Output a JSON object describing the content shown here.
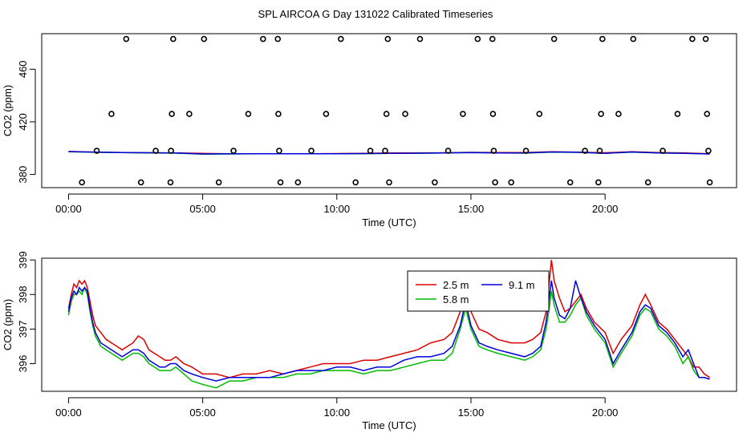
{
  "title": "SPL AIRCOA G  Day 131022  Calibrated Timeseries",
  "colors": {
    "red": "#dd0000",
    "green": "#00bb00",
    "blue": "#0000dd",
    "black": "#000000"
  },
  "chart_data": [
    {
      "type": "scatter",
      "xlabel": "Time (UTC)",
      "ylabel": "CO2 (ppm)",
      "xlim": [
        -1.0,
        24.9
      ],
      "ylim": [
        370.0,
        487.0
      ],
      "x_ticks": [
        0,
        5,
        10,
        15,
        20
      ],
      "x_tick_labels": [
        "00:00",
        "05:00",
        "10:00",
        "15:00",
        "20:00"
      ],
      "y_ticks": [
        380,
        420,
        460
      ],
      "y_tick_labels": [
        "380",
        "420",
        "460"
      ],
      "grid": false,
      "legend": "none",
      "points": [
        {
          "x": 0.5,
          "y": 374
        },
        {
          "x": 1.05,
          "y": 398
        },
        {
          "x": 1.6,
          "y": 426
        },
        {
          "x": 2.15,
          "y": 483
        },
        {
          "x": 2.7,
          "y": 374
        },
        {
          "x": 3.25,
          "y": 398
        },
        {
          "x": 3.8,
          "y": 374
        },
        {
          "x": 3.82,
          "y": 398
        },
        {
          "x": 3.85,
          "y": 426
        },
        {
          "x": 3.9,
          "y": 483
        },
        {
          "x": 4.5,
          "y": 426
        },
        {
          "x": 5.05,
          "y": 483
        },
        {
          "x": 5.6,
          "y": 374
        },
        {
          "x": 6.15,
          "y": 398
        },
        {
          "x": 6.7,
          "y": 426
        },
        {
          "x": 7.25,
          "y": 483
        },
        {
          "x": 7.8,
          "y": 483
        },
        {
          "x": 7.82,
          "y": 426
        },
        {
          "x": 7.85,
          "y": 398
        },
        {
          "x": 7.9,
          "y": 374
        },
        {
          "x": 8.55,
          "y": 374
        },
        {
          "x": 9.05,
          "y": 398
        },
        {
          "x": 9.6,
          "y": 426
        },
        {
          "x": 10.15,
          "y": 483
        },
        {
          "x": 10.7,
          "y": 374
        },
        {
          "x": 11.25,
          "y": 398
        },
        {
          "x": 11.8,
          "y": 398
        },
        {
          "x": 11.85,
          "y": 426
        },
        {
          "x": 11.9,
          "y": 483
        },
        {
          "x": 11.95,
          "y": 374
        },
        {
          "x": 12.55,
          "y": 426
        },
        {
          "x": 13.1,
          "y": 483
        },
        {
          "x": 13.65,
          "y": 374
        },
        {
          "x": 14.15,
          "y": 398
        },
        {
          "x": 14.7,
          "y": 426
        },
        {
          "x": 15.25,
          "y": 483
        },
        {
          "x": 15.8,
          "y": 483
        },
        {
          "x": 15.82,
          "y": 426
        },
        {
          "x": 15.85,
          "y": 398
        },
        {
          "x": 15.9,
          "y": 374
        },
        {
          "x": 16.5,
          "y": 374
        },
        {
          "x": 17.05,
          "y": 398
        },
        {
          "x": 17.55,
          "y": 426
        },
        {
          "x": 18.1,
          "y": 483
        },
        {
          "x": 18.7,
          "y": 374
        },
        {
          "x": 19.25,
          "y": 398
        },
        {
          "x": 19.75,
          "y": 374
        },
        {
          "x": 19.8,
          "y": 398
        },
        {
          "x": 19.85,
          "y": 426
        },
        {
          "x": 19.9,
          "y": 483
        },
        {
          "x": 20.5,
          "y": 426
        },
        {
          "x": 21.05,
          "y": 483
        },
        {
          "x": 21.6,
          "y": 374
        },
        {
          "x": 22.15,
          "y": 398
        },
        {
          "x": 22.7,
          "y": 426
        },
        {
          "x": 23.25,
          "y": 483
        },
        {
          "x": 23.75,
          "y": 483
        },
        {
          "x": 23.8,
          "y": 426
        },
        {
          "x": 23.85,
          "y": 398
        },
        {
          "x": 23.9,
          "y": 374
        }
      ],
      "series": [
        {
          "color": "#dd0000",
          "x": [
            0,
            1,
            2,
            3,
            4,
            5,
            6,
            7,
            8,
            9,
            10,
            11,
            12,
            13,
            14,
            15,
            16,
            17,
            18,
            19,
            20,
            21,
            22,
            23,
            23.9
          ],
          "y": [
            397.5,
            397.0,
            396.7,
            396.5,
            396.3,
            396.0,
            395.8,
            395.8,
            395.8,
            395.8,
            395.9,
            396.0,
            396.3,
            396.4,
            396.5,
            396.8,
            396.6,
            396.6,
            397.3,
            397.0,
            396.5,
            397.3,
            396.6,
            396.3,
            395.7
          ]
        },
        {
          "color": "#00bb00",
          "x": [
            0,
            1,
            2,
            3,
            4,
            5,
            6,
            7,
            8,
            9,
            10,
            11,
            12,
            13,
            14,
            15,
            16,
            17,
            18,
            19,
            20,
            21,
            22,
            23,
            23.9
          ],
          "y": [
            397.3,
            396.9,
            396.6,
            396.4,
            396.2,
            395.4,
            395.6,
            395.7,
            395.7,
            395.7,
            395.8,
            395.8,
            396.1,
            396.1,
            396.3,
            396.6,
            396.3,
            396.2,
            397.0,
            396.8,
            396.0,
            397.0,
            396.3,
            396.0,
            395.6
          ]
        },
        {
          "color": "#0000dd",
          "x": [
            0,
            1,
            2,
            3,
            4,
            5,
            6,
            7,
            8,
            9,
            10,
            11,
            12,
            13,
            14,
            15,
            16,
            17,
            18,
            19,
            20,
            21,
            22,
            23,
            23.9
          ],
          "y": [
            397.4,
            397.0,
            396.7,
            396.5,
            396.3,
            395.6,
            395.7,
            395.7,
            395.7,
            395.8,
            395.8,
            395.9,
            396.1,
            396.2,
            396.4,
            396.7,
            396.4,
            396.3,
            397.1,
            396.9,
            396.1,
            397.1,
            396.4,
            396.1,
            395.6
          ]
        }
      ]
    },
    {
      "type": "line",
      "xlabel": "Time (UTC)",
      "ylabel": "CO2 (ppm)",
      "xlim": [
        -1.0,
        24.9
      ],
      "ylim": [
        395.2,
        399.05
      ],
      "x_ticks": [
        0,
        5,
        10,
        15,
        20
      ],
      "x_tick_labels": [
        "00:00",
        "05:00",
        "10:00",
        "15:00",
        "20:00"
      ],
      "y_ticks": [
        396,
        397,
        398,
        399
      ],
      "y_tick_labels": [
        "396",
        "397",
        "398",
        "399"
      ],
      "grid": false,
      "legend": "top-right",
      "series": [
        {
          "name": "2.5 m",
          "color": "#dd0000",
          "x": [
            0,
            0.1,
            0.2,
            0.3,
            0.4,
            0.5,
            0.6,
            0.7,
            0.8,
            0.9,
            1.0,
            1.2,
            1.4,
            1.6,
            1.8,
            2.0,
            2.2,
            2.4,
            2.6,
            2.8,
            3.0,
            3.2,
            3.4,
            3.6,
            3.8,
            4.0,
            4.3,
            4.6,
            5.0,
            5.5,
            6.0,
            6.5,
            7.0,
            7.5,
            8.0,
            8.5,
            9.0,
            9.5,
            10.0,
            10.5,
            11.0,
            11.5,
            12.0,
            12.5,
            13.0,
            13.5,
            14.0,
            14.3,
            14.6,
            14.8,
            15.0,
            15.3,
            15.6,
            16.0,
            16.5,
            17.0,
            17.3,
            17.6,
            17.8,
            17.9,
            18.0,
            18.1,
            18.3,
            18.5,
            18.7,
            18.9,
            19.1,
            19.3,
            19.6,
            20.0,
            20.3,
            20.6,
            21.0,
            21.3,
            21.5,
            21.7,
            22.0,
            22.3,
            22.6,
            22.9,
            23.1,
            23.3,
            23.5,
            23.7,
            23.9
          ],
          "y": [
            397.6,
            398.0,
            398.3,
            398.2,
            398.4,
            398.3,
            398.4,
            398.2,
            397.8,
            397.4,
            397.1,
            396.9,
            396.7,
            396.6,
            396.5,
            396.4,
            396.5,
            396.6,
            396.8,
            396.7,
            396.4,
            396.3,
            396.2,
            396.1,
            396.1,
            396.2,
            396.0,
            395.9,
            395.7,
            395.7,
            395.6,
            395.7,
            395.7,
            395.8,
            395.7,
            395.8,
            395.9,
            396.0,
            396.0,
            396.0,
            396.1,
            396.1,
            396.2,
            396.3,
            396.4,
            396.6,
            396.7,
            396.9,
            397.5,
            398.1,
            397.5,
            397.0,
            396.9,
            396.7,
            396.6,
            396.6,
            396.7,
            396.9,
            397.5,
            398.2,
            399.0,
            398.4,
            397.9,
            397.5,
            397.6,
            397.8,
            398.0,
            397.6,
            397.2,
            396.9,
            396.3,
            396.7,
            397.1,
            397.7,
            398.0,
            397.7,
            397.2,
            397.0,
            396.7,
            396.4,
            396.2,
            395.9,
            395.9,
            395.7,
            395.6
          ]
        },
        {
          "name": "5.8 m",
          "color": "#00bb00",
          "x": [
            0,
            0.1,
            0.2,
            0.3,
            0.4,
            0.5,
            0.6,
            0.7,
            0.8,
            0.9,
            1.0,
            1.2,
            1.4,
            1.6,
            1.8,
            2.0,
            2.2,
            2.4,
            2.6,
            2.8,
            3.0,
            3.2,
            3.4,
            3.6,
            3.8,
            4.0,
            4.3,
            4.6,
            5.0,
            5.5,
            6.0,
            6.5,
            7.0,
            7.5,
            8.0,
            8.5,
            9.0,
            9.5,
            10.0,
            10.5,
            11.0,
            11.5,
            12.0,
            12.5,
            13.0,
            13.5,
            14.0,
            14.3,
            14.6,
            14.8,
            15.0,
            15.3,
            15.6,
            16.0,
            16.5,
            17.0,
            17.3,
            17.6,
            17.8,
            17.9,
            18.0,
            18.1,
            18.3,
            18.5,
            18.7,
            18.9,
            19.1,
            19.3,
            19.6,
            20.0,
            20.3,
            20.6,
            21.0,
            21.3,
            21.5,
            21.7,
            22.0,
            22.3,
            22.6,
            22.9,
            23.1,
            23.3,
            23.5,
            23.7,
            23.9
          ],
          "y": [
            397.4,
            397.8,
            398.0,
            398.0,
            398.1,
            398.0,
            398.2,
            398.0,
            397.5,
            397.1,
            396.8,
            396.5,
            396.4,
            396.3,
            396.2,
            396.1,
            396.2,
            396.3,
            396.3,
            396.2,
            396.0,
            395.9,
            395.8,
            395.8,
            395.8,
            395.9,
            395.7,
            395.5,
            395.4,
            395.3,
            395.5,
            395.5,
            395.6,
            395.6,
            395.6,
            395.7,
            395.7,
            395.8,
            395.8,
            395.8,
            395.7,
            395.8,
            395.8,
            395.9,
            396.0,
            396.1,
            396.1,
            396.3,
            397.0,
            397.6,
            397.0,
            396.5,
            396.4,
            396.3,
            396.2,
            396.1,
            396.2,
            396.4,
            397.0,
            397.5,
            398.1,
            397.7,
            397.2,
            397.2,
            397.4,
            397.7,
            397.9,
            397.4,
            397.0,
            396.6,
            395.9,
            396.3,
            396.8,
            397.4,
            397.6,
            397.5,
            397.0,
            396.8,
            396.5,
            396.0,
            396.2,
            395.8,
            395.6,
            395.6,
            395.55
          ]
        },
        {
          "name": "9.1 m",
          "color": "#0000dd",
          "x": [
            0,
            0.1,
            0.2,
            0.3,
            0.4,
            0.5,
            0.6,
            0.7,
            0.8,
            0.9,
            1.0,
            1.2,
            1.4,
            1.6,
            1.8,
            2.0,
            2.2,
            2.4,
            2.6,
            2.8,
            3.0,
            3.2,
            3.4,
            3.6,
            3.8,
            4.0,
            4.3,
            4.6,
            5.0,
            5.5,
            6.0,
            6.5,
            7.0,
            7.5,
            8.0,
            8.5,
            9.0,
            9.5,
            10.0,
            10.5,
            11.0,
            11.5,
            12.0,
            12.5,
            13.0,
            13.5,
            14.0,
            14.3,
            14.6,
            14.8,
            15.0,
            15.3,
            15.6,
            16.0,
            16.5,
            17.0,
            17.3,
            17.6,
            17.8,
            17.9,
            18.0,
            18.1,
            18.3,
            18.5,
            18.7,
            18.9,
            19.1,
            19.3,
            19.6,
            20.0,
            20.3,
            20.6,
            21.0,
            21.3,
            21.5,
            21.7,
            22.0,
            22.3,
            22.6,
            22.9,
            23.1,
            23.3,
            23.5,
            23.7,
            23.9
          ],
          "y": [
            397.5,
            397.9,
            398.1,
            398.0,
            398.2,
            398.1,
            398.2,
            398.1,
            397.6,
            397.2,
            396.9,
            396.6,
            396.5,
            396.4,
            396.3,
            396.2,
            396.3,
            396.4,
            396.4,
            396.3,
            396.1,
            396.0,
            395.9,
            395.9,
            396.0,
            396.0,
            395.8,
            395.7,
            395.6,
            395.5,
            395.6,
            395.6,
            395.6,
            395.6,
            395.7,
            395.8,
            395.8,
            395.8,
            395.9,
            395.9,
            395.8,
            395.9,
            395.9,
            396.1,
            396.2,
            396.2,
            396.3,
            396.5,
            397.1,
            397.8,
            397.1,
            396.6,
            396.5,
            396.4,
            396.3,
            396.2,
            396.3,
            396.5,
            397.2,
            397.8,
            398.4,
            397.9,
            397.4,
            397.3,
            397.6,
            398.4,
            397.9,
            397.5,
            397.1,
            396.7,
            396.0,
            396.4,
            396.9,
            397.5,
            397.7,
            397.6,
            397.1,
            396.9,
            396.6,
            396.2,
            396.4,
            396.0,
            395.6,
            395.6,
            395.55
          ]
        }
      ]
    }
  ]
}
